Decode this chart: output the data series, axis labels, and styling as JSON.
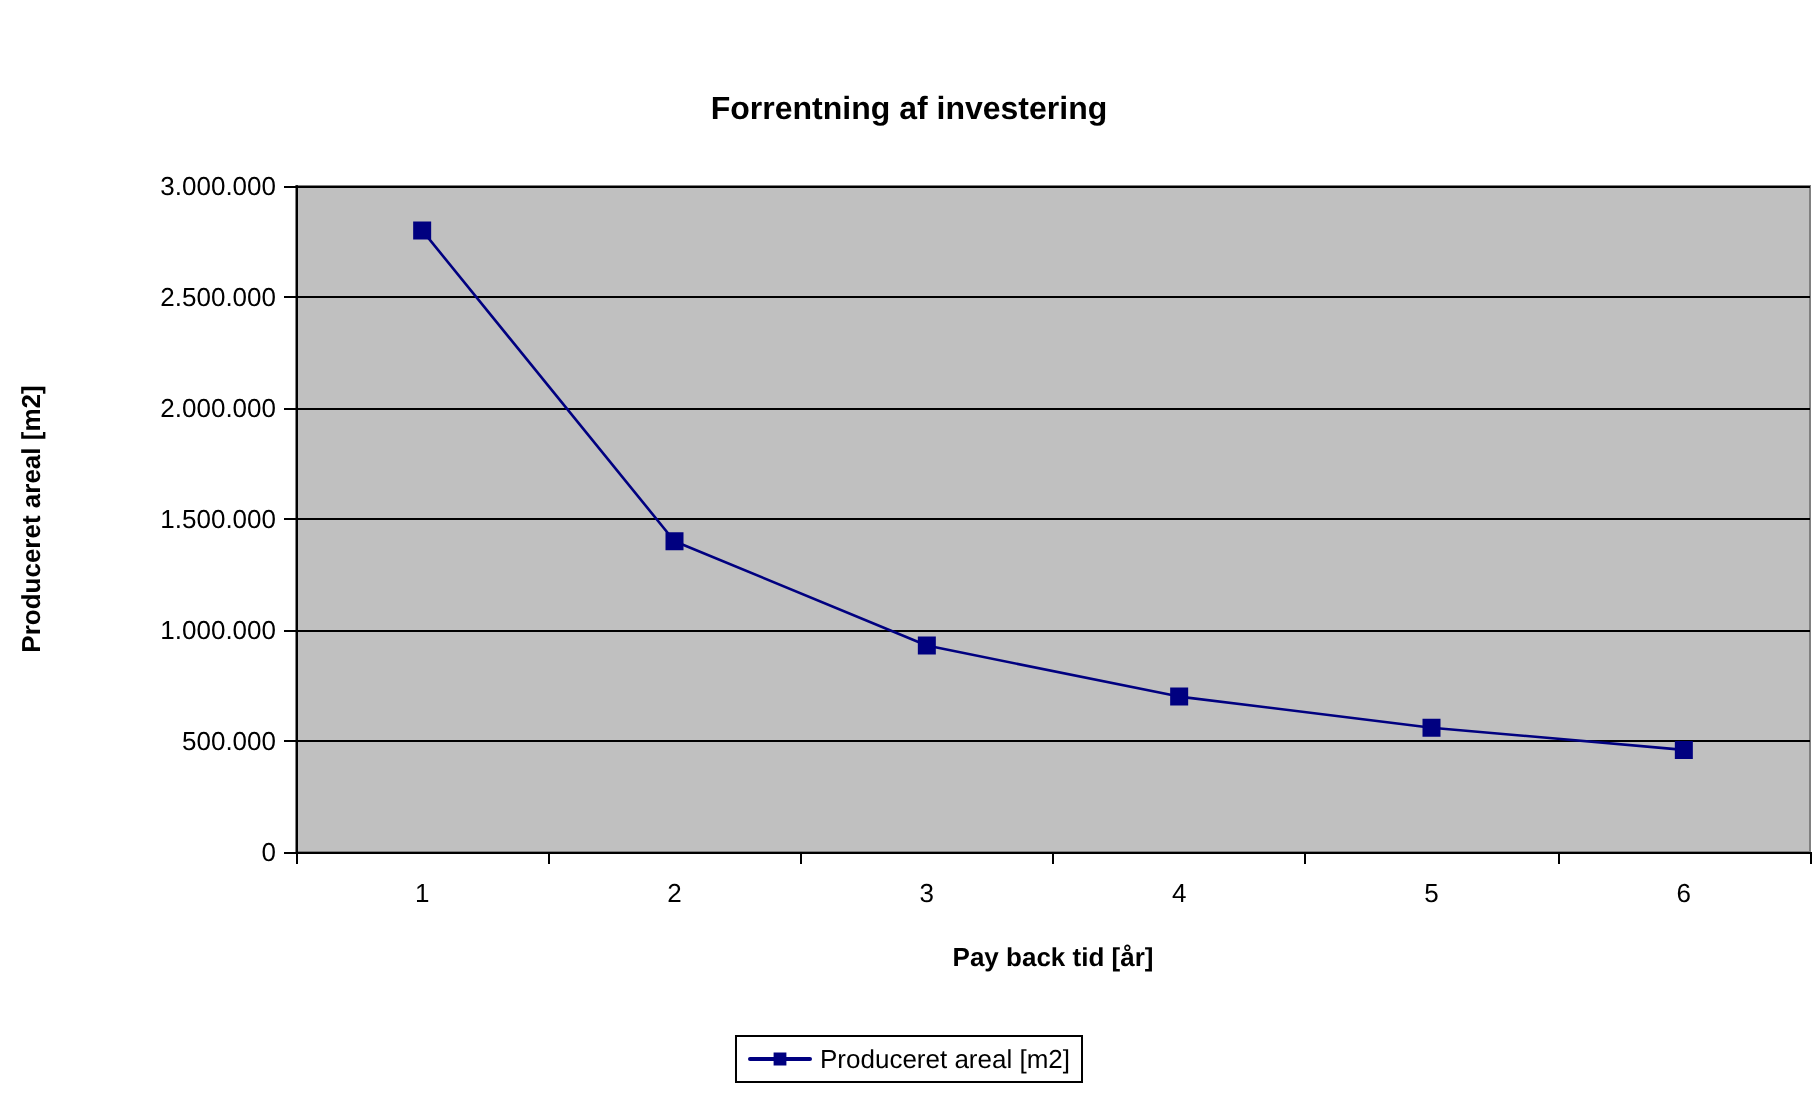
{
  "chart_data": {
    "type": "line",
    "title": "Forrentning af investering",
    "xlabel": "Pay back tid [år]",
    "ylabel": "Produceret areal [m2]",
    "categories": [
      "1",
      "2",
      "3",
      "4",
      "5",
      "6"
    ],
    "series": [
      {
        "name": "Produceret areal [m2]",
        "color": "#000080",
        "values": [
          2800000,
          1400000,
          930000,
          700000,
          560000,
          460000
        ]
      }
    ],
    "ylim": [
      0,
      3000000
    ],
    "yticks": [
      {
        "value": 0,
        "label": "0"
      },
      {
        "value": 500000,
        "label": "500.000"
      },
      {
        "value": 1000000,
        "label": "1.000.000"
      },
      {
        "value": 1500000,
        "label": "1.500.000"
      },
      {
        "value": 2000000,
        "label": "2.000.000"
      },
      {
        "value": 2500000,
        "label": "2.500.000"
      },
      {
        "value": 3000000,
        "label": "3.000.000"
      }
    ],
    "grid": "y",
    "legend": "bottom",
    "marker": "square",
    "line_style": "solid"
  }
}
